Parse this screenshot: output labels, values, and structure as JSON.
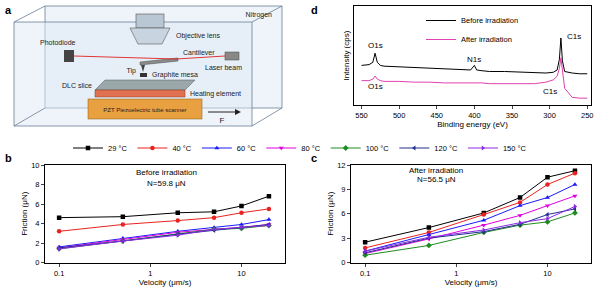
{
  "diagram": {
    "panel": "a",
    "labels": {
      "nitrogen": "Nitrogen",
      "objective_lens": "Objective lens",
      "cantilever": "Cantilever",
      "photodiode": "Photodiode",
      "laser_beam": "Laser beam",
      "tip": "Tip",
      "graphite_mesa": "Graphite mesa",
      "dlc_slice": "DLC slice",
      "heating_element": "Heating element",
      "scanner": "PZT Piezoelectric tube scanner",
      "force": "F"
    }
  },
  "chart_data": [
    {
      "panel": "b",
      "type": "line",
      "x": [
        0.1,
        0.5,
        2,
        5,
        10,
        20
      ],
      "x_label": "Velocity (μm/s)",
      "y_label": "Friction (μN)",
      "log": "x",
      "xlim": [
        0.07,
        30
      ],
      "xticks": [
        0.1,
        1,
        10
      ],
      "ylim": [
        0,
        10
      ],
      "yticks": [
        0,
        2,
        4,
        6,
        8,
        10
      ],
      "legend": "top",
      "annotations": [
        {
          "text": "Before irradiation",
          "x": 1.5,
          "y": 9.2
        },
        {
          "text": "N=59.8 μN",
          "x": 1.5,
          "y": 8.1
        }
      ],
      "series": [
        {
          "name": "29 °C",
          "color": "#000000",
          "marker": "square",
          "values": [
            4.6,
            4.7,
            5.1,
            5.2,
            5.8,
            6.8
          ]
        },
        {
          "name": "40 °C",
          "color": "#e8231f",
          "marker": "circle",
          "values": [
            3.2,
            3.9,
            4.3,
            4.6,
            5.1,
            5.5
          ]
        },
        {
          "name": "60 °C",
          "color": "#1a1aff",
          "marker": "triangle-up",
          "values": [
            1.6,
            2.5,
            3.2,
            3.6,
            3.9,
            4.4
          ]
        },
        {
          "name": "80 °C",
          "color": "#e000e0",
          "marker": "triangle-down",
          "values": [
            1.5,
            2.4,
            3.1,
            3.4,
            3.6,
            3.9
          ]
        },
        {
          "name": "100 °C",
          "color": "#1e8c1e",
          "marker": "diamond",
          "values": [
            1.4,
            2.2,
            2.9,
            3.4,
            3.5,
            3.8
          ]
        },
        {
          "name": "120 °C",
          "color": "#1f2f8f",
          "marker": "triangle-left",
          "values": [
            1.5,
            2.2,
            2.9,
            3.3,
            3.6,
            3.9
          ]
        },
        {
          "name": "150 °C",
          "color": "#8a2be2",
          "marker": "triangle-right",
          "values": [
            1.4,
            2.2,
            2.8,
            3.4,
            3.6,
            3.8
          ]
        }
      ]
    },
    {
      "panel": "c",
      "type": "line",
      "x": [
        0.1,
        0.5,
        2,
        5,
        10,
        20
      ],
      "x_label": "Velocity (μm/s)",
      "y_label": "Friction (μN)",
      "log": "x",
      "xlim": [
        0.07,
        30
      ],
      "xticks": [
        0.1,
        1,
        10
      ],
      "ylim": [
        0,
        12
      ],
      "yticks": [
        0,
        3,
        6,
        9,
        12
      ],
      "annotations": [
        {
          "text": "After irradiation",
          "x": 0.6,
          "y": 11.3
        },
        {
          "text": "N=56.5 μN",
          "x": 0.6,
          "y": 10.2
        }
      ],
      "series": [
        {
          "name": "29 °C",
          "color": "#000000",
          "marker": "square",
          "values": [
            2.5,
            4.3,
            6.1,
            8.0,
            10.5,
            11.3
          ]
        },
        {
          "name": "40 °C",
          "color": "#e8231f",
          "marker": "circle",
          "values": [
            1.8,
            3.7,
            5.9,
            7.4,
            9.6,
            11.0
          ]
        },
        {
          "name": "60 °C",
          "color": "#1a1aff",
          "marker": "triangle-up",
          "values": [
            1.4,
            3.4,
            5.2,
            7.0,
            8.0,
            9.6
          ]
        },
        {
          "name": "80 °C",
          "color": "#e000e0",
          "marker": "triangle-down",
          "values": [
            1.1,
            2.9,
            4.6,
            5.8,
            7.0,
            8.2
          ]
        },
        {
          "name": "100 °C",
          "color": "#1e8c1e",
          "marker": "diamond",
          "values": [
            0.9,
            2.1,
            3.7,
            4.6,
            5.0,
            6.1
          ]
        },
        {
          "name": "120 °C",
          "color": "#1f2f8f",
          "marker": "triangle-left",
          "values": [
            1.2,
            3.0,
            3.8,
            4.7,
            5.9,
            6.6
          ]
        },
        {
          "name": "150 °C",
          "color": "#8a2be2",
          "marker": "triangle-right",
          "values": [
            1.4,
            3.1,
            4.0,
            4.9,
            5.4,
            6.9
          ]
        }
      ]
    },
    {
      "panel": "d",
      "type": "line",
      "x": [
        550,
        540,
        535,
        532,
        529,
        525,
        520,
        500,
        480,
        460,
        440,
        420,
        405,
        400,
        397,
        390,
        380,
        360,
        340,
        320,
        305,
        295,
        290,
        287,
        285,
        283,
        280,
        270,
        260,
        250
      ],
      "x_label": "Binding energy (eV)",
      "y_label": "Intensity (cps)",
      "xlim": [
        560,
        245
      ],
      "xticks": [
        550,
        500,
        450,
        400,
        350,
        300,
        250
      ],
      "ylim": [
        0,
        130
      ],
      "tick_labels": "x",
      "legend": "upper center",
      "annotations": [
        {
          "text": "O1s",
          "x": 532,
          "y": 78
        },
        {
          "text": "N1s",
          "x": 400,
          "y": 60
        },
        {
          "text": "C1s",
          "x": 268,
          "y": 90
        },
        {
          "text": "O1s",
          "x": 532,
          "y": 24
        },
        {
          "text": "C1s",
          "x": 300,
          "y": 18
        }
      ],
      "series": [
        {
          "name": "Before irradiation",
          "color": "#000000",
          "values": [
            52,
            53,
            56,
            68,
            56,
            52,
            51,
            50,
            49,
            48,
            47,
            46,
            46,
            52,
            46,
            45,
            44,
            44,
            43,
            42,
            42,
            43,
            46,
            60,
            88,
            58,
            44,
            42,
            41,
            41
          ]
        },
        {
          "name": "After irradiation",
          "color": "#e040b0",
          "values": [
            32,
            32,
            34,
            38,
            34,
            32,
            31,
            31,
            30,
            30,
            29,
            29,
            29,
            29,
            29,
            29,
            28,
            28,
            28,
            28,
            30,
            33,
            38,
            48,
            62,
            45,
            22,
            10,
            9,
            9
          ]
        }
      ]
    }
  ]
}
